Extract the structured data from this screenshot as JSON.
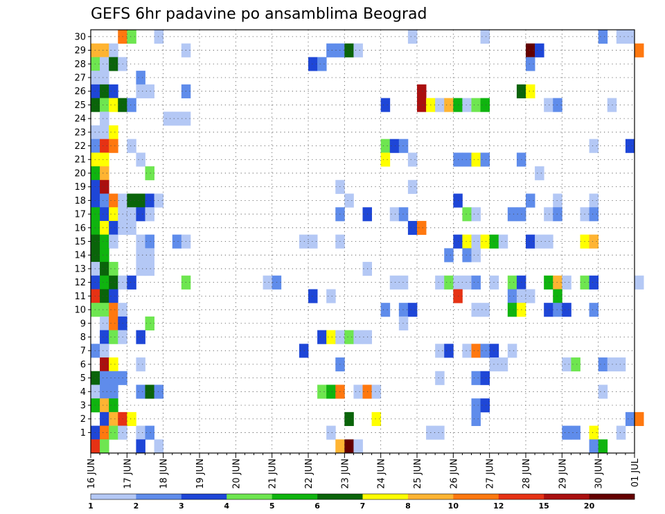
{
  "chart_data": {
    "type": "heatmap",
    "title": "GEFS 6hr padavine po ansamblima Beograd",
    "xlabel": "",
    "ylabel": "",
    "x_labels": [
      "16 JUN",
      "17 JUN",
      "18 JUN",
      "19 JUN",
      "20 JUN",
      "21 JUN",
      "22 JUN",
      "23 JUN",
      "24 JUN",
      "25 JUN",
      "26 JUN",
      "27 JUN",
      "28 JUN",
      "29 JUN",
      "30 JUN",
      "01 JUL"
    ],
    "y_labels": [
      "1",
      "2",
      "3",
      "4",
      "5",
      "6",
      "7",
      "8",
      "9",
      "10",
      "11",
      "12",
      "13",
      "14",
      "15",
      "16",
      "17",
      "18",
      "19",
      "20",
      "21",
      "22",
      "23",
      "24",
      "25",
      "26",
      "27",
      "28",
      "29",
      "30"
    ],
    "steps_per_day": 4,
    "grid": true,
    "legend": "bottom",
    "colorbar_levels": [
      "1",
      "2",
      "3",
      "4",
      "5",
      "6",
      "7",
      "8",
      "10",
      "12",
      "15",
      "20"
    ],
    "colorbar_colors": [
      "#b4c8f5",
      "#5f8ceb",
      "#1e46d7",
      "#6ee650",
      "#0fb40f",
      "#0a640a",
      "#ffff00",
      "#ffb432",
      "#ff780f",
      "#e63214",
      "#aa0f0f",
      "#640000"
    ],
    "cells": [
      [
        30,
        3,
        9
      ],
      [
        30,
        4,
        4
      ],
      [
        30,
        7,
        1
      ],
      [
        30,
        35,
        1
      ],
      [
        30,
        43,
        1
      ],
      [
        30,
        56,
        2
      ],
      [
        30,
        58,
        1
      ],
      [
        30,
        59,
        1
      ],
      [
        29,
        0,
        8
      ],
      [
        29,
        1,
        8
      ],
      [
        29,
        2,
        1
      ],
      [
        29,
        10,
        1
      ],
      [
        29,
        26,
        2
      ],
      [
        29,
        27,
        2
      ],
      [
        29,
        28,
        6
      ],
      [
        29,
        29,
        1
      ],
      [
        29,
        48,
        12
      ],
      [
        29,
        49,
        3
      ],
      [
        29,
        60,
        9
      ],
      [
        28,
        0,
        4
      ],
      [
        28,
        1,
        1
      ],
      [
        28,
        2,
        6
      ],
      [
        28,
        3,
        1
      ],
      [
        28,
        24,
        3
      ],
      [
        28,
        25,
        2
      ],
      [
        28,
        48,
        2
      ],
      [
        27,
        0,
        1
      ],
      [
        27,
        1,
        1
      ],
      [
        27,
        5,
        2
      ],
      [
        26,
        0,
        3
      ],
      [
        26,
        1,
        6
      ],
      [
        26,
        2,
        3
      ],
      [
        26,
        5,
        1
      ],
      [
        26,
        6,
        1
      ],
      [
        26,
        10,
        2
      ],
      [
        26,
        36,
        11
      ],
      [
        26,
        47,
        6
      ],
      [
        26,
        48,
        7
      ],
      [
        25,
        0,
        6
      ],
      [
        25,
        1,
        4
      ],
      [
        25,
        2,
        7
      ],
      [
        25,
        3,
        6
      ],
      [
        25,
        4,
        2
      ],
      [
        25,
        32,
        3
      ],
      [
        25,
        36,
        11
      ],
      [
        25,
        37,
        7
      ],
      [
        25,
        38,
        1
      ],
      [
        25,
        39,
        8
      ],
      [
        25,
        40,
        5
      ],
      [
        25,
        41,
        1
      ],
      [
        25,
        42,
        4
      ],
      [
        25,
        43,
        5
      ],
      [
        25,
        50,
        1
      ],
      [
        25,
        51,
        2
      ],
      [
        25,
        57,
        1
      ],
      [
        24,
        1,
        1
      ],
      [
        24,
        8,
        1
      ],
      [
        24,
        9,
        1
      ],
      [
        24,
        10,
        1
      ],
      [
        23,
        0,
        1
      ],
      [
        23,
        1,
        1
      ],
      [
        23,
        2,
        7
      ],
      [
        22,
        0,
        2
      ],
      [
        22,
        1,
        10
      ],
      [
        22,
        2,
        9
      ],
      [
        22,
        4,
        1
      ],
      [
        22,
        32,
        4
      ],
      [
        22,
        33,
        3
      ],
      [
        22,
        34,
        2
      ],
      [
        22,
        55,
        1
      ],
      [
        22,
        59,
        3
      ],
      [
        21,
        0,
        7
      ],
      [
        21,
        1,
        7
      ],
      [
        21,
        5,
        1
      ],
      [
        21,
        32,
        7
      ],
      [
        21,
        35,
        1
      ],
      [
        21,
        40,
        2
      ],
      [
        21,
        41,
        2
      ],
      [
        21,
        42,
        7
      ],
      [
        21,
        43,
        2
      ],
      [
        21,
        47,
        2
      ],
      [
        20,
        0,
        5
      ],
      [
        20,
        1,
        8
      ],
      [
        20,
        6,
        4
      ],
      [
        20,
        49,
        1
      ],
      [
        19,
        0,
        3
      ],
      [
        19,
        1,
        11
      ],
      [
        19,
        27,
        1
      ],
      [
        19,
        35,
        1
      ],
      [
        18,
        0,
        3
      ],
      [
        18,
        1,
        2
      ],
      [
        18,
        2,
        9
      ],
      [
        18,
        3,
        1
      ],
      [
        18,
        4,
        6
      ],
      [
        18,
        5,
        6
      ],
      [
        18,
        6,
        3
      ],
      [
        18,
        7,
        1
      ],
      [
        18,
        28,
        1
      ],
      [
        18,
        40,
        3
      ],
      [
        18,
        48,
        2
      ],
      [
        18,
        51,
        1
      ],
      [
        18,
        55,
        1
      ],
      [
        17,
        0,
        5
      ],
      [
        17,
        1,
        3
      ],
      [
        17,
        2,
        7
      ],
      [
        17,
        3,
        1
      ],
      [
        17,
        4,
        1
      ],
      [
        17,
        5,
        3
      ],
      [
        17,
        6,
        1
      ],
      [
        17,
        27,
        2
      ],
      [
        17,
        30,
        3
      ],
      [
        17,
        33,
        1
      ],
      [
        17,
        34,
        2
      ],
      [
        17,
        41,
        4
      ],
      [
        17,
        42,
        1
      ],
      [
        17,
        46,
        2
      ],
      [
        17,
        47,
        2
      ],
      [
        17,
        50,
        1
      ],
      [
        17,
        51,
        2
      ],
      [
        17,
        54,
        1
      ],
      [
        17,
        55,
        2
      ],
      [
        16,
        0,
        5
      ],
      [
        16,
        1,
        7
      ],
      [
        16,
        2,
        3
      ],
      [
        16,
        3,
        1
      ],
      [
        16,
        4,
        1
      ],
      [
        16,
        35,
        3
      ],
      [
        16,
        36,
        9
      ],
      [
        15,
        0,
        6
      ],
      [
        15,
        1,
        5
      ],
      [
        15,
        2,
        1
      ],
      [
        15,
        5,
        1
      ],
      [
        15,
        6,
        2
      ],
      [
        15,
        9,
        2
      ],
      [
        15,
        10,
        1
      ],
      [
        15,
        23,
        1
      ],
      [
        15,
        24,
        1
      ],
      [
        15,
        27,
        1
      ],
      [
        15,
        40,
        3
      ],
      [
        15,
        41,
        7
      ],
      [
        15,
        42,
        1
      ],
      [
        15,
        43,
        7
      ],
      [
        15,
        44,
        5
      ],
      [
        15,
        45,
        1
      ],
      [
        15,
        48,
        3
      ],
      [
        15,
        49,
        1
      ],
      [
        15,
        50,
        1
      ],
      [
        15,
        54,
        7
      ],
      [
        15,
        55,
        8
      ],
      [
        14,
        0,
        6
      ],
      [
        14,
        1,
        5
      ],
      [
        14,
        5,
        1
      ],
      [
        14,
        6,
        1
      ],
      [
        14,
        39,
        2
      ],
      [
        14,
        41,
        2
      ],
      [
        14,
        42,
        1
      ],
      [
        13,
        0,
        1
      ],
      [
        13,
        1,
        6
      ],
      [
        13,
        2,
        4
      ],
      [
        13,
        5,
        1
      ],
      [
        13,
        6,
        1
      ],
      [
        13,
        30,
        1
      ],
      [
        12,
        0,
        3
      ],
      [
        12,
        1,
        5
      ],
      [
        12,
        2,
        6
      ],
      [
        12,
        3,
        1
      ],
      [
        12,
        4,
        3
      ],
      [
        12,
        10,
        4
      ],
      [
        12,
        19,
        1
      ],
      [
        12,
        20,
        2
      ],
      [
        12,
        33,
        1
      ],
      [
        12,
        34,
        1
      ],
      [
        12,
        38,
        1
      ],
      [
        12,
        39,
        4
      ],
      [
        12,
        40,
        1
      ],
      [
        12,
        41,
        1
      ],
      [
        12,
        42,
        2
      ],
      [
        12,
        44,
        1
      ],
      [
        12,
        46,
        4
      ],
      [
        12,
        47,
        3
      ],
      [
        12,
        50,
        5
      ],
      [
        12,
        51,
        8
      ],
      [
        12,
        52,
        1
      ],
      [
        12,
        54,
        4
      ],
      [
        12,
        55,
        3
      ],
      [
        12,
        60,
        1
      ],
      [
        11,
        0,
        10
      ],
      [
        11,
        1,
        6
      ],
      [
        11,
        2,
        3
      ],
      [
        11,
        24,
        3
      ],
      [
        11,
        26,
        1
      ],
      [
        11,
        40,
        10
      ],
      [
        11,
        46,
        2
      ],
      [
        11,
        47,
        1
      ],
      [
        11,
        48,
        1
      ],
      [
        11,
        51,
        5
      ],
      [
        10,
        0,
        4
      ],
      [
        10,
        1,
        4
      ],
      [
        10,
        2,
        9
      ],
      [
        10,
        3,
        1
      ],
      [
        10,
        32,
        2
      ],
      [
        10,
        34,
        2
      ],
      [
        10,
        35,
        3
      ],
      [
        10,
        42,
        1
      ],
      [
        10,
        43,
        1
      ],
      [
        10,
        46,
        5
      ],
      [
        10,
        47,
        7
      ],
      [
        10,
        50,
        3
      ],
      [
        10,
        51,
        2
      ],
      [
        10,
        52,
        3
      ],
      [
        10,
        55,
        2
      ],
      [
        9,
        1,
        1
      ],
      [
        9,
        2,
        9
      ],
      [
        9,
        3,
        3
      ],
      [
        9,
        6,
        4
      ],
      [
        9,
        34,
        1
      ],
      [
        8,
        1,
        3
      ],
      [
        8,
        2,
        4
      ],
      [
        8,
        3,
        1
      ],
      [
        8,
        5,
        3
      ],
      [
        8,
        25,
        3
      ],
      [
        8,
        26,
        7
      ],
      [
        8,
        27,
        1
      ],
      [
        8,
        28,
        4
      ],
      [
        8,
        29,
        1
      ],
      [
        8,
        30,
        1
      ],
      [
        7,
        0,
        2
      ],
      [
        7,
        1,
        1
      ],
      [
        7,
        23,
        3
      ],
      [
        7,
        38,
        1
      ],
      [
        7,
        39,
        3
      ],
      [
        7,
        41,
        1
      ],
      [
        7,
        42,
        9
      ],
      [
        7,
        43,
        2
      ],
      [
        7,
        44,
        3
      ],
      [
        7,
        46,
        1
      ],
      [
        6,
        1,
        11
      ],
      [
        6,
        2,
        7
      ],
      [
        6,
        5,
        1
      ],
      [
        6,
        27,
        2
      ],
      [
        6,
        44,
        1
      ],
      [
        6,
        45,
        1
      ],
      [
        6,
        52,
        1
      ],
      [
        6,
        53,
        4
      ],
      [
        6,
        56,
        2
      ],
      [
        6,
        57,
        1
      ],
      [
        6,
        58,
        1
      ],
      [
        5,
        0,
        6
      ],
      [
        5,
        1,
        2
      ],
      [
        5,
        2,
        2
      ],
      [
        5,
        3,
        2
      ],
      [
        5,
        38,
        1
      ],
      [
        5,
        42,
        2
      ],
      [
        5,
        43,
        3
      ],
      [
        4,
        0,
        1
      ],
      [
        4,
        1,
        2
      ],
      [
        4,
        2,
        2
      ],
      [
        4,
        5,
        2
      ],
      [
        4,
        6,
        6
      ],
      [
        4,
        7,
        2
      ],
      [
        4,
        25,
        4
      ],
      [
        4,
        26,
        5
      ],
      [
        4,
        27,
        9
      ],
      [
        4,
        29,
        1
      ],
      [
        4,
        30,
        9
      ],
      [
        4,
        31,
        1
      ],
      [
        4,
        56,
        1
      ],
      [
        3,
        0,
        5
      ],
      [
        3,
        1,
        8
      ],
      [
        3,
        2,
        5
      ],
      [
        3,
        42,
        2
      ],
      [
        3,
        43,
        3
      ],
      [
        2,
        1,
        3
      ],
      [
        2,
        2,
        8
      ],
      [
        2,
        3,
        10
      ],
      [
        2,
        4,
        7
      ],
      [
        2,
        28,
        6
      ],
      [
        2,
        31,
        7
      ],
      [
        2,
        42,
        2
      ],
      [
        2,
        59,
        2
      ],
      [
        2,
        60,
        9
      ],
      [
        1,
        0,
        3
      ],
      [
        1,
        1,
        9
      ],
      [
        1,
        2,
        4
      ],
      [
        1,
        3,
        1
      ],
      [
        1,
        5,
        1
      ],
      [
        1,
        6,
        2
      ],
      [
        1,
        26,
        1
      ],
      [
        1,
        37,
        1
      ],
      [
        1,
        38,
        1
      ],
      [
        1,
        52,
        2
      ],
      [
        1,
        53,
        2
      ],
      [
        1,
        55,
        7
      ],
      [
        1,
        58,
        1
      ],
      [
        0,
        0,
        10
      ],
      [
        0,
        1,
        4
      ],
      [
        0,
        5,
        3
      ],
      [
        0,
        7,
        1
      ],
      [
        0,
        27,
        8
      ],
      [
        0,
        28,
        12
      ],
      [
        0,
        29,
        1
      ],
      [
        0,
        55,
        2
      ],
      [
        0,
        56,
        5
      ]
    ]
  }
}
